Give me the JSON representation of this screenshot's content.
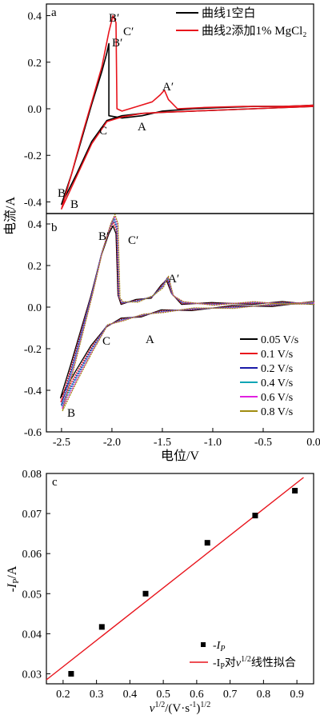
{
  "colors": {
    "black": "#000000",
    "red": "#e8141c",
    "blue": "#1a1aa8",
    "cyan": "#0ea5b5",
    "magenta": "#e020e0",
    "olive": "#a08c10"
  },
  "labels": {
    "ylabel_top": "电流/A",
    "xlabel_ab": "电位/V",
    "ylabel_c_prefix": "-I",
    "ylabel_c_sub": "P",
    "ylabel_c_suffix": "/A",
    "xlabel_c_v": "v",
    "xlabel_c_sup": "1/2",
    "xlabel_c_rest": "/(V·s",
    "xlabel_c_sup2": "-1",
    "xlabel_c_end": ")",
    "xlabel_c_sup3": "1/2"
  },
  "chart_data": [
    {
      "type": "line",
      "panel": "a",
      "ylim": [
        -0.45,
        0.45
      ],
      "xlim": [
        -2.65,
        0.0
      ],
      "yticks": [
        "0.4",
        "0.2",
        "0.0",
        "-0.2",
        "-0.4"
      ],
      "legend": {
        "placement": "top-right",
        "entries": [
          "曲线1空白",
          "曲线2添加1% MgCl₂"
        ]
      },
      "annotations": [
        "B′",
        "C′",
        "B′",
        "A′",
        "C",
        "A",
        "B",
        "B"
      ],
      "series": [
        {
          "name": "曲线1空白",
          "color": "black",
          "x": [
            0.0,
            -0.3,
            -0.6,
            -0.9,
            -1.2,
            -1.5,
            -1.7,
            -1.9,
            -2.05,
            -2.2,
            -2.35,
            -2.5,
            -2.4,
            -2.3,
            -2.2,
            -2.1,
            -2.05,
            -2.03,
            -2.03,
            -1.9,
            -1.7,
            -1.5,
            -1.2,
            -0.9,
            -0.6,
            -0.3,
            0.0
          ],
          "y": [
            0.01,
            0.005,
            0.0,
            -0.005,
            -0.01,
            -0.015,
            -0.02,
            -0.03,
            -0.05,
            -0.14,
            -0.28,
            -0.41,
            -0.28,
            -0.13,
            0.02,
            0.16,
            0.24,
            0.28,
            -0.03,
            -0.04,
            -0.03,
            -0.01,
            0.0,
            0.005,
            0.01,
            0.01,
            0.015
          ]
        },
        {
          "name": "曲线2添加1% MgCl₂",
          "color": "red",
          "x": [
            0.0,
            -0.3,
            -0.6,
            -0.9,
            -1.2,
            -1.5,
            -1.7,
            -1.9,
            -2.05,
            -2.2,
            -2.35,
            -2.5,
            -2.4,
            -2.3,
            -2.2,
            -2.1,
            -2.03,
            -1.99,
            -1.96,
            -1.95,
            -1.9,
            -1.75,
            -1.6,
            -1.52,
            -1.48,
            -1.44,
            -1.35,
            -1.1,
            -0.7,
            -0.3,
            0.0
          ],
          "y": [
            0.01,
            0.005,
            0.0,
            -0.005,
            -0.01,
            -0.015,
            -0.02,
            -0.035,
            -0.055,
            -0.15,
            -0.29,
            -0.43,
            -0.28,
            -0.12,
            0.03,
            0.18,
            0.33,
            0.4,
            0.37,
            0.0,
            -0.01,
            0.01,
            0.03,
            0.06,
            0.08,
            0.04,
            0.0,
            0.005,
            0.01,
            0.01,
            0.015
          ]
        }
      ]
    },
    {
      "type": "line",
      "panel": "b",
      "xlim": [
        -2.65,
        0.0
      ],
      "ylim": [
        -0.6,
        0.45
      ],
      "xticks": [
        "-2.5",
        "-2.0",
        "-1.5",
        "-1.0",
        "-0.5",
        "0.0"
      ],
      "yticks": [
        "0.4",
        "0.2",
        "0.0",
        "-0.2",
        "-0.4",
        "-0.6"
      ],
      "xlabel": "电位/V",
      "legend": {
        "placement": "bottom-right",
        "entries": [
          "0.05 V/s",
          "0.1 V/s",
          "0.2 V/s",
          "0.4 V/s",
          "0.6 V/s",
          "0.8 V/s"
        ]
      },
      "annotations": [
        "B′",
        "C′",
        "A′",
        "C",
        "A",
        "B"
      ],
      "series": [
        {
          "name": "0.05 V/s",
          "color": "black",
          "scale": 0.93
        },
        {
          "name": "0.1 V/s",
          "color": "red",
          "scale": 0.97
        },
        {
          "name": "0.2 V/s",
          "color": "blue",
          "scale": 1.0
        },
        {
          "name": "0.4 V/s",
          "color": "cyan",
          "scale": 1.02
        },
        {
          "name": "0.6 V/s",
          "color": "magenta",
          "scale": 1.04
        },
        {
          "name": "0.8 V/s",
          "color": "olive",
          "scale": 1.06
        }
      ],
      "base_curve": {
        "x": [
          0.0,
          -0.4,
          -0.8,
          -1.2,
          -1.5,
          -1.7,
          -1.9,
          -2.05,
          -2.2,
          -2.35,
          -2.5,
          -2.4,
          -2.3,
          -2.2,
          -2.1,
          -2.02,
          -1.98,
          -1.95,
          -1.93,
          -1.9,
          -1.75,
          -1.6,
          -1.5,
          -1.45,
          -1.4,
          -1.3,
          -1.0,
          -0.6,
          -0.3,
          0.0
        ],
        "y": [
          0.02,
          0.01,
          0.0,
          -0.01,
          -0.02,
          -0.04,
          -0.06,
          -0.09,
          -0.2,
          -0.33,
          -0.47,
          -0.3,
          -0.12,
          0.06,
          0.26,
          0.38,
          0.42,
          0.38,
          0.05,
          0.02,
          0.03,
          0.05,
          0.1,
          0.14,
          0.06,
          0.02,
          0.015,
          0.02,
          0.02,
          0.02
        ]
      }
    },
    {
      "type": "scatter",
      "panel": "c",
      "xlim": [
        0.15,
        0.95
      ],
      "ylim": [
        0.0275,
        0.08
      ],
      "xticks": [
        "0.2",
        "0.3",
        "0.4",
        "0.5",
        "0.6",
        "0.7",
        "0.8",
        "0.9"
      ],
      "yticks": [
        "0.08",
        "0.07",
        "0.06",
        "0.05",
        "0.04",
        "0.03"
      ],
      "legend": {
        "placement": "bottom-right",
        "entries": [
          "-IP",
          "-IP对v1/2线性拟合"
        ]
      },
      "points": [
        {
          "x": 0.224,
          "y": 0.03
        },
        {
          "x": 0.316,
          "y": 0.0417
        },
        {
          "x": 0.447,
          "y": 0.05
        },
        {
          "x": 0.632,
          "y": 0.0627
        },
        {
          "x": 0.775,
          "y": 0.0695
        },
        {
          "x": 0.894,
          "y": 0.0757
        }
      ],
      "fit": {
        "x": [
          0.15,
          0.92
        ],
        "y": [
          0.0285,
          0.079
        ],
        "color": "red"
      }
    }
  ]
}
